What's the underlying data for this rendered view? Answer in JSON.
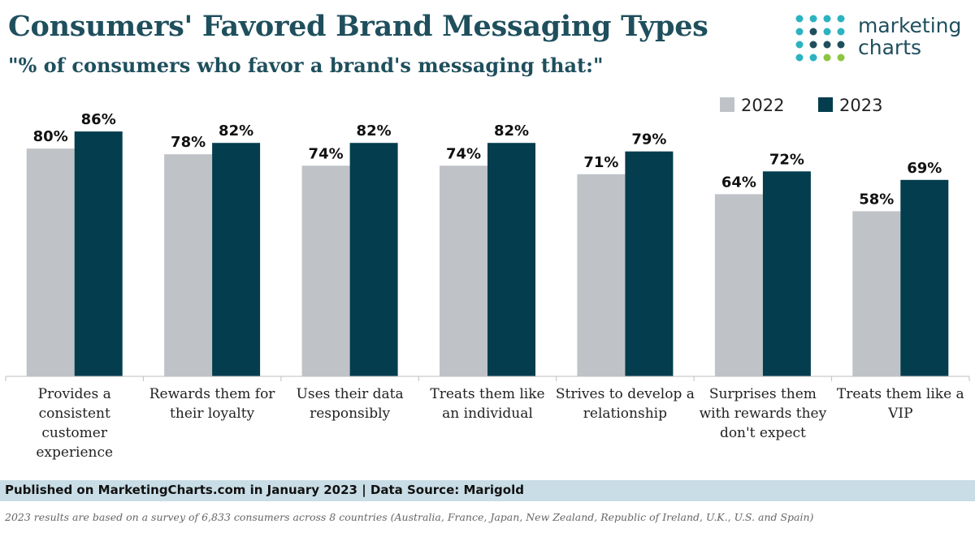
{
  "header": {
    "title": "Consumers' Favored Brand Messaging Types",
    "subtitle": "\"% of consumers who favor a brand's messaging that:\""
  },
  "logo": {
    "line1": "marketing",
    "line2": "charts",
    "colors": {
      "teal": "#2bb3c0",
      "dark": "#1f4f5d",
      "green": "#8cc63f"
    }
  },
  "chart_data": {
    "type": "bar",
    "title": "Consumers' Favored Brand Messaging Types",
    "subtitle": "% of consumers who favor a brand's messaging that:",
    "categories": [
      [
        "Provides a",
        "consistent",
        "customer",
        "experience"
      ],
      [
        "Rewards them for",
        "their loyalty"
      ],
      [
        "Uses their data",
        "responsibly"
      ],
      [
        "Treats them like",
        "an individual"
      ],
      [
        "Strives to develop a",
        "relationship"
      ],
      [
        "Surprises them",
        "with rewards they",
        "don't expect"
      ],
      [
        "Treats them like a",
        "VIP"
      ]
    ],
    "series": [
      {
        "name": "2022",
        "color": "#bfc3c7",
        "values": [
          80,
          78,
          74,
          74,
          71,
          64,
          58
        ]
      },
      {
        "name": "2023",
        "color": "#033d4e",
        "values": [
          86,
          82,
          82,
          82,
          79,
          72,
          69
        ]
      }
    ],
    "value_suffix": "%",
    "ylim": [
      0,
      100
    ],
    "xlabel": "",
    "ylabel": "",
    "grid": false,
    "legend_position": "top-right"
  },
  "footer": {
    "published": "Published on MarketingCharts.com in January 2023 | Data Source: Marigold",
    "note": "2023 results are based on a survey of 6,833 consumers across 8 countries (Australia, France, Japan, New Zealand, Republic of Ireland, U.K., U.S. and Spain)"
  }
}
